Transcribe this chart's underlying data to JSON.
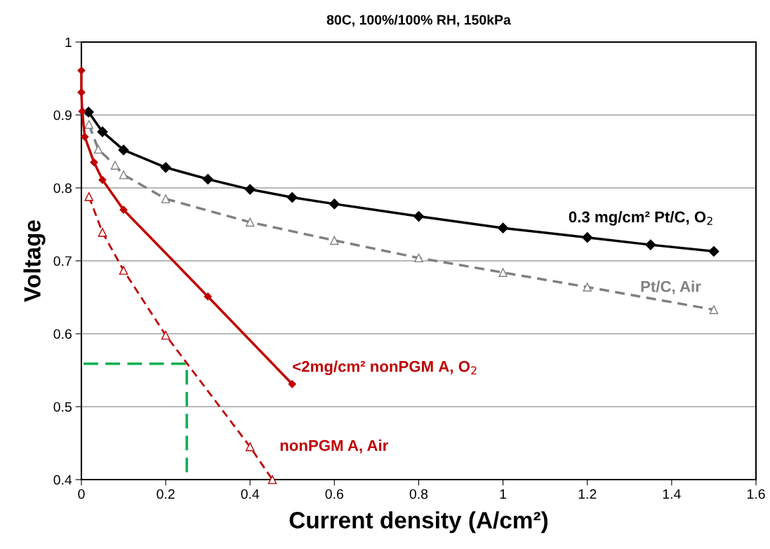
{
  "chart_data": {
    "type": "line",
    "title": "80C, 100%/100% RH, 150kPa",
    "xlabel": "Current density (A/cm²)",
    "ylabel": "Voltage",
    "xlim": [
      0,
      1.6
    ],
    "xticks": [
      0,
      0.2,
      0.4,
      0.6,
      0.8,
      1,
      1.2,
      1.4,
      1.6
    ],
    "ylim": [
      0.4,
      1
    ],
    "yticks": [
      0.4,
      0.5,
      0.6,
      0.7,
      0.8,
      0.9,
      1
    ],
    "grid": "y",
    "legend": false,
    "series": [
      {
        "name": "0.3 mg/cm² Pt/C, O$_{2}$",
        "color": "#000000",
        "marker": "diamond",
        "line_style": "solid",
        "x": [
          0.017,
          0.05,
          0.1,
          0.2,
          0.3,
          0.4,
          0.5,
          0.6,
          0.8,
          1.0,
          1.2,
          1.35,
          1.5
        ],
        "values": [
          0.904,
          0.877,
          0.852,
          0.828,
          0.812,
          0.798,
          0.787,
          0.778,
          0.761,
          0.745,
          0.732,
          0.722,
          0.713
        ]
      },
      {
        "name": "Pt/C, Air",
        "color": "#808080",
        "marker": "triangle",
        "line_style": "dashed",
        "x": [
          0.018,
          0.04,
          0.08,
          0.1,
          0.2,
          0.4,
          0.6,
          0.8,
          1.0,
          1.2,
          1.5
        ],
        "values": [
          0.887,
          0.853,
          0.831,
          0.818,
          0.785,
          0.753,
          0.728,
          0.704,
          0.684,
          0.664,
          0.633
        ]
      },
      {
        "name": "<2mg/cm² nonPGM A, O$_{2}$",
        "color": "#c00000",
        "marker": "diamond",
        "line_style": "solid",
        "x": [
          0,
          0,
          0.002,
          0.008,
          0.03,
          0.05,
          0.1,
          0.3,
          0.5
        ],
        "values": [
          0.961,
          0.931,
          0.905,
          0.87,
          0.835,
          0.811,
          0.77,
          0.651,
          0.531
        ]
      },
      {
        "name": "nonPGM A, Air",
        "color": "#c00000",
        "marker": "triangle",
        "line_style": "dashed",
        "x": [
          0.018,
          0.05,
          0.1,
          0.2,
          0.4,
          0.453
        ],
        "values": [
          0.788,
          0.739,
          0.687,
          0.598,
          0.445,
          0.4
        ]
      },
      {
        "color": "#00b050",
        "marker": "none",
        "line_style": "dashed",
        "x": [
          0.005,
          0.25,
          0.25
        ],
        "values": [
          0.559,
          0.559,
          0.41
        ]
      }
    ]
  }
}
